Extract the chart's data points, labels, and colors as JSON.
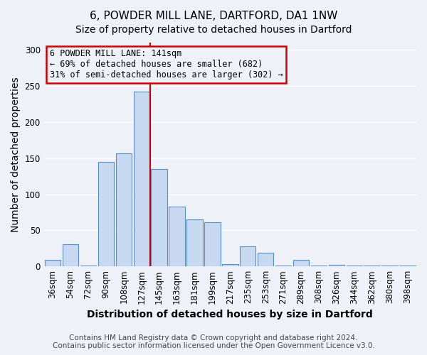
{
  "title": "6, POWDER MILL LANE, DARTFORD, DA1 1NW",
  "subtitle": "Size of property relative to detached houses in Dartford",
  "xlabel": "Distribution of detached houses by size in Dartford",
  "ylabel": "Number of detached properties",
  "footer_line1": "Contains HM Land Registry data © Crown copyright and database right 2024.",
  "footer_line2": "Contains public sector information licensed under the Open Government Licence v3.0.",
  "bar_labels": [
    "36sqm",
    "54sqm",
    "72sqm",
    "90sqm",
    "108sqm",
    "127sqm",
    "145sqm",
    "163sqm",
    "181sqm",
    "199sqm",
    "217sqm",
    "235sqm",
    "253sqm",
    "271sqm",
    "289sqm",
    "308sqm",
    "326sqm",
    "344sqm",
    "362sqm",
    "380sqm",
    "398sqm"
  ],
  "bar_values": [
    9,
    31,
    1,
    145,
    157,
    242,
    135,
    83,
    65,
    61,
    3,
    28,
    19,
    1,
    9,
    1,
    2,
    1,
    1,
    1,
    1
  ],
  "bar_color": "#c6d9f0",
  "bar_edge_color": "#5a8fc2",
  "vline_x_index": 6,
  "vline_color": "#cc0000",
  "annotation_text": "6 POWDER MILL LANE: 141sqm\n← 69% of detached houses are smaller (682)\n31% of semi-detached houses are larger (302) →",
  "annotation_box_color": "#cc0000",
  "ylim": [
    0,
    310
  ],
  "yticks": [
    0,
    50,
    100,
    150,
    200,
    250,
    300
  ],
  "background_color": "#eef2f8",
  "grid_color": "#ffffff",
  "title_fontsize": 11,
  "subtitle_fontsize": 10,
  "axis_label_fontsize": 10,
  "tick_fontsize": 8.5,
  "footer_fontsize": 7.5
}
